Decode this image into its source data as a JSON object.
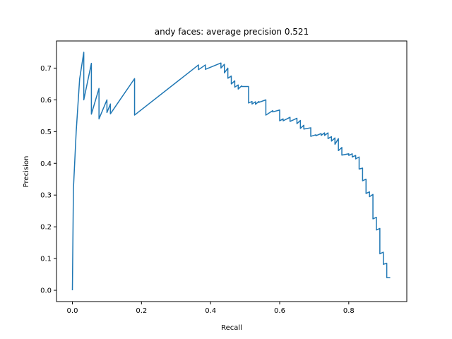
{
  "chart_data": {
    "type": "line",
    "title": "andy faces: average precision 0.521",
    "xlabel": "Recall",
    "ylabel": "Precision",
    "xlim": [
      -0.046,
      0.968
    ],
    "ylim": [
      -0.0355,
      0.7855
    ],
    "xticks": [
      0.0,
      0.2,
      0.4,
      0.6,
      0.8
    ],
    "xtick_labels": [
      "0.0",
      "0.2",
      "0.4",
      "0.6",
      "0.8"
    ],
    "yticks": [
      0.0,
      0.1,
      0.2,
      0.3,
      0.4,
      0.5,
      0.6,
      0.7
    ],
    "ytick_labels": [
      "0.0",
      "0.1",
      "0.2",
      "0.3",
      "0.4",
      "0.5",
      "0.6",
      "0.7"
    ],
    "grid": false,
    "line_color": "#1f77b4",
    "series": [
      {
        "x": [
          0.0,
          0.003,
          0.011,
          0.021,
          0.033,
          0.033,
          0.055,
          0.055,
          0.077,
          0.077,
          0.1,
          0.1,
          0.11,
          0.11,
          0.18,
          0.18,
          0.365,
          0.365,
          0.385,
          0.385,
          0.43,
          0.43,
          0.44,
          0.44,
          0.45,
          0.45,
          0.46,
          0.46,
          0.47,
          0.47,
          0.48,
          0.48,
          0.49,
          0.49,
          0.51,
          0.51,
          0.52,
          0.52,
          0.53,
          0.53,
          0.54,
          0.54,
          0.56,
          0.56,
          0.58,
          0.58,
          0.6,
          0.6,
          0.61,
          0.61,
          0.63,
          0.63,
          0.65,
          0.65,
          0.66,
          0.66,
          0.67,
          0.67,
          0.69,
          0.69,
          0.705,
          0.705,
          0.72,
          0.72,
          0.73,
          0.73,
          0.74,
          0.74,
          0.75,
          0.75,
          0.76,
          0.76,
          0.77,
          0.77,
          0.78,
          0.78,
          0.8,
          0.8,
          0.81,
          0.81,
          0.82,
          0.82,
          0.83,
          0.83,
          0.84,
          0.84,
          0.85,
          0.85,
          0.86,
          0.86,
          0.87,
          0.87,
          0.88,
          0.88,
          0.89,
          0.89,
          0.9,
          0.9,
          0.91,
          0.91,
          0.92
        ],
        "y": [
          0.0,
          0.32,
          0.5,
          0.666,
          0.75,
          0.6,
          0.715,
          0.555,
          0.636,
          0.54,
          0.6,
          0.56,
          0.587,
          0.556,
          0.667,
          0.552,
          0.71,
          0.695,
          0.71,
          0.696,
          0.716,
          0.7,
          0.712,
          0.685,
          0.7,
          0.668,
          0.675,
          0.65,
          0.66,
          0.64,
          0.647,
          0.634,
          0.644,
          0.642,
          0.642,
          0.59,
          0.595,
          0.587,
          0.594,
          0.586,
          0.595,
          0.592,
          0.6,
          0.552,
          0.566,
          0.562,
          0.568,
          0.534,
          0.54,
          0.534,
          0.545,
          0.532,
          0.542,
          0.525,
          0.535,
          0.51,
          0.52,
          0.508,
          0.512,
          0.485,
          0.49,
          0.487,
          0.494,
          0.488,
          0.496,
          0.488,
          0.496,
          0.478,
          0.484,
          0.47,
          0.48,
          0.46,
          0.478,
          0.44,
          0.45,
          0.426,
          0.43,
          0.425,
          0.43,
          0.42,
          0.425,
          0.414,
          0.42,
          0.382,
          0.385,
          0.345,
          0.35,
          0.305,
          0.31,
          0.295,
          0.302,
          0.225,
          0.23,
          0.19,
          0.195,
          0.115,
          0.12,
          0.082,
          0.085,
          0.04,
          0.04
        ]
      }
    ]
  }
}
